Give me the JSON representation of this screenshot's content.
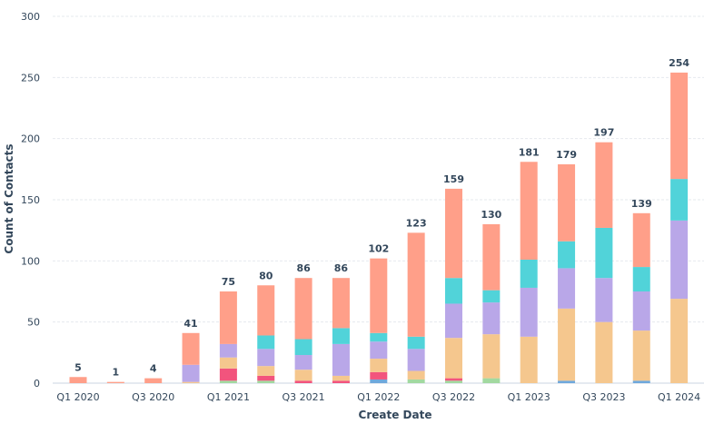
{
  "chart_data": {
    "type": "bar",
    "stacked": true,
    "xlabel": "Create Date",
    "ylabel": "Count of Contacts",
    "ylim": [
      0,
      300
    ],
    "y_ticks": [
      "0",
      "50",
      "100",
      "150",
      "200",
      "250",
      "300"
    ],
    "grid": true,
    "categories": [
      "Q1 2020",
      "Q2 2020",
      "Q3 2020",
      "Q4 2020",
      "Q1 2021",
      "Q2 2021",
      "Q3 2021",
      "Q4 2021",
      "Q1 2022",
      "Q2 2022",
      "Q3 2022",
      "Q4 2022",
      "Q1 2023",
      "Q2 2023",
      "Q3 2023",
      "Q4 2023",
      "Q1 2024"
    ],
    "x_tick_labels": [
      "Q1 2020",
      "",
      "Q3 2020",
      "",
      "Q1 2021",
      "",
      "Q3 2021",
      "",
      "Q1 2022",
      "",
      "Q3 2022",
      "",
      "Q1 2023",
      "",
      "Q3 2023",
      "",
      "Q1 2024"
    ],
    "totals": [
      "5",
      "1",
      "4",
      "41",
      "75",
      "80",
      "86",
      "86",
      "102",
      "123",
      "159",
      "130",
      "181",
      "179",
      "197",
      "139",
      "254"
    ],
    "series": [
      {
        "color": "#6fa8dc",
        "values": [
          0,
          0,
          0,
          0,
          0,
          0,
          0,
          0,
          3,
          0,
          0,
          0,
          0,
          2,
          0,
          2,
          0
        ]
      },
      {
        "color": "#a2d9a0",
        "values": [
          0,
          0,
          0,
          0,
          2,
          2,
          0,
          0,
          0,
          3,
          2,
          4,
          0,
          0,
          0,
          0,
          0
        ]
      },
      {
        "color": "#f2547d",
        "values": [
          0,
          0,
          0,
          0,
          10,
          4,
          2,
          2,
          6,
          0,
          2,
          0,
          0,
          0,
          0,
          0,
          0
        ]
      },
      {
        "color": "#f5c78e",
        "values": [
          0,
          0,
          0,
          1,
          9,
          8,
          9,
          4,
          11,
          7,
          33,
          36,
          38,
          59,
          50,
          41,
          69
        ]
      },
      {
        "color": "#b9a7e8",
        "values": [
          0,
          0,
          0,
          14,
          11,
          14,
          12,
          26,
          14,
          18,
          28,
          26,
          40,
          33,
          36,
          32,
          64
        ]
      },
      {
        "color": "#51d3d9",
        "values": [
          0,
          0,
          0,
          0,
          0,
          11,
          13,
          13,
          7,
          10,
          21,
          10,
          23,
          22,
          41,
          20,
          34
        ]
      },
      {
        "color": "#ff9f89",
        "values": [
          5,
          1,
          4,
          26,
          43,
          41,
          50,
          41,
          61,
          85,
          73,
          54,
          80,
          63,
          70,
          44,
          87
        ]
      }
    ]
  }
}
